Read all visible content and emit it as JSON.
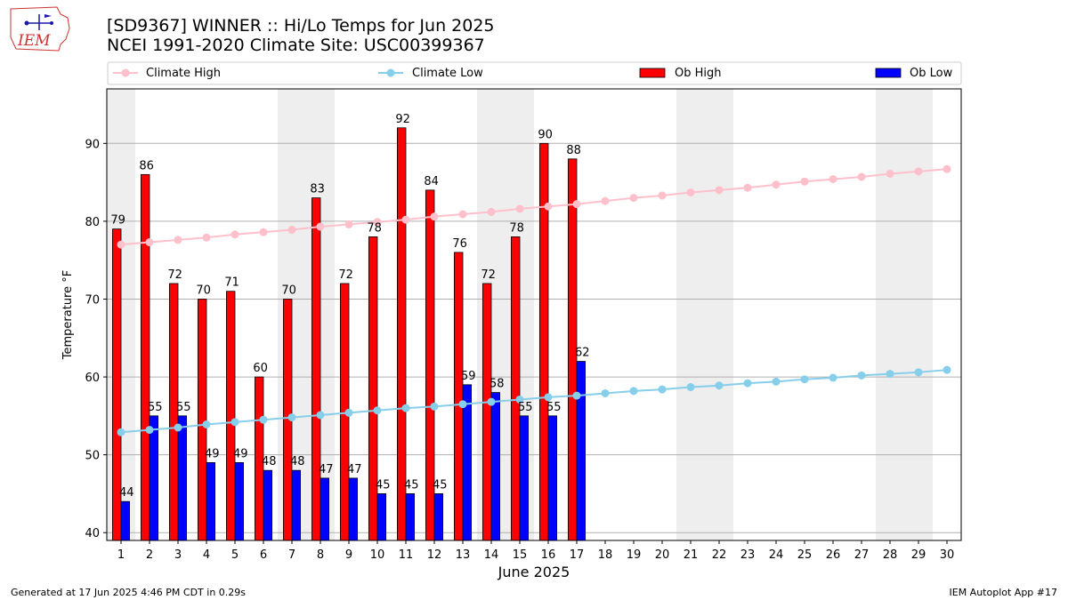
{
  "header": {
    "title_line1": "[SD9367] WINNER :: Hi/Lo Temps for Jun 2025",
    "title_line2": "NCEI 1991-2020 Climate Site: USC00399367",
    "logo_text": "IEM"
  },
  "footer": {
    "generated": "Generated at 17 Jun 2025 4:46 PM CDT in 0.29s",
    "app": "IEM Autoplot App #17"
  },
  "colors": {
    "ob_high": "#ff0000",
    "ob_low": "#0000ff",
    "climate_high": "#ffc0cb",
    "climate_low": "#87ceeb",
    "weekend_shade": "#eeeeee",
    "grid": "#b0b0b0"
  },
  "chart_data": {
    "type": "bar",
    "title": "[SD9367] WINNER :: Hi/Lo Temps for Jun 2025",
    "subtitle": "NCEI 1991-2020 Climate Site: USC00399367",
    "xlabel": "June 2025",
    "ylabel": "Temperature °F",
    "xlim": [
      0.5,
      30.5
    ],
    "ylim": [
      39,
      97
    ],
    "yticks": [
      40,
      50,
      60,
      70,
      80,
      90
    ],
    "grid": "horizontal",
    "legend_position": "top",
    "days": [
      1,
      2,
      3,
      4,
      5,
      6,
      7,
      8,
      9,
      10,
      11,
      12,
      13,
      14,
      15,
      16,
      17,
      18,
      19,
      20,
      21,
      22,
      23,
      24,
      25,
      26,
      27,
      28,
      29,
      30
    ],
    "shaded_day_ranges": [
      [
        0.5,
        1.5
      ],
      [
        6.5,
        8.5
      ],
      [
        13.5,
        15.5
      ],
      [
        20.5,
        22.5
      ],
      [
        27.5,
        29.5
      ]
    ],
    "series": [
      {
        "name": "Climate High",
        "kind": "line",
        "values": [
          77.0,
          77.3,
          77.6,
          77.9,
          78.3,
          78.6,
          78.9,
          79.3,
          79.6,
          79.9,
          80.2,
          80.6,
          80.9,
          81.2,
          81.6,
          81.9,
          82.2,
          82.6,
          83.0,
          83.3,
          83.7,
          84.0,
          84.3,
          84.7,
          85.1,
          85.4,
          85.7,
          86.1,
          86.4,
          86.7
        ]
      },
      {
        "name": "Climate Low",
        "kind": "line",
        "values": [
          52.9,
          53.2,
          53.5,
          53.9,
          54.2,
          54.5,
          54.8,
          55.1,
          55.4,
          55.7,
          56.0,
          56.2,
          56.5,
          56.8,
          57.1,
          57.4,
          57.6,
          57.9,
          58.2,
          58.4,
          58.7,
          58.9,
          59.2,
          59.4,
          59.7,
          59.9,
          60.2,
          60.4,
          60.6,
          60.9
        ]
      },
      {
        "name": "Ob High",
        "kind": "bar",
        "values": [
          79,
          86,
          72,
          70,
          71,
          60,
          70,
          83,
          72,
          78,
          92,
          84,
          76,
          72,
          78,
          90,
          88
        ]
      },
      {
        "name": "Ob Low",
        "kind": "bar",
        "values": [
          44,
          55,
          55,
          49,
          49,
          48,
          48,
          47,
          47,
          45,
          45,
          45,
          59,
          58,
          55,
          55,
          62
        ]
      }
    ]
  }
}
